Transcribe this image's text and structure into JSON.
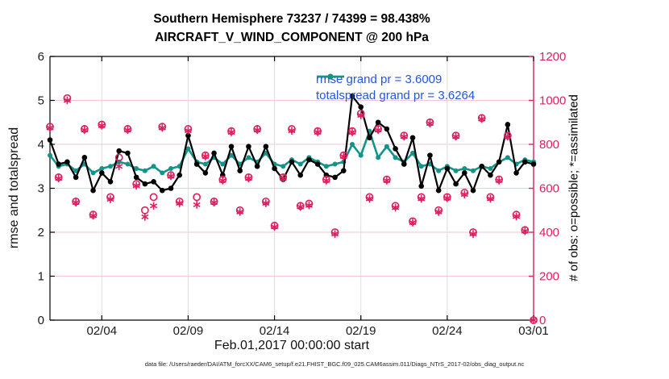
{
  "title": {
    "line1": "Southern Hemisphere 73237 / 74399 = 98.438%",
    "line2": "AIRCRAFT_V_WIND_COMPONENT @ 200 hPa"
  },
  "legend": {
    "items": [
      {
        "label": "rmse grand pr = 3.6009",
        "color": "#000000"
      },
      {
        "label": "totalspread grand pr = 3.6264",
        "color": "#12948a"
      }
    ],
    "text_color": "#2356dd"
  },
  "axes": {
    "left_label": "rmse and totalspread",
    "right_label": "# of obs: o=possible; *=assimilated",
    "x_label": "Feb.01,2017 00:00:00 start",
    "left_ticks": [
      0,
      1,
      2,
      3,
      4,
      5,
      6
    ],
    "right_ticks": [
      0,
      200,
      400,
      600,
      800,
      1000,
      1200
    ],
    "x_ticks": [
      {
        "day": 3,
        "label": "02/04"
      },
      {
        "day": 8,
        "label": "02/09"
      },
      {
        "day": 13,
        "label": "02/14"
      },
      {
        "day": 18,
        "label": "02/19"
      },
      {
        "day": 23,
        "label": "02/24"
      },
      {
        "day": 28,
        "label": "03/01"
      }
    ]
  },
  "footer": "data file: /Users/raeder/DAI/ATM_forcXX/CAM6_setup/f.e21.FHIST_BGC.f09_025.CAM6assim.011/Diags_NTrS_2017-02/obs_diag_output.nc",
  "colors": {
    "rmse": "#000000",
    "totalspread": "#12948a",
    "obs": "#dc205f",
    "grid_horizontal": "#f3c6d3",
    "grid_vertical": "#dcdcdc",
    "axis_black": "#000000",
    "axis_right": "#dc205f",
    "legend_text": "#2356dd",
    "tick_text": "#1a1a1a"
  },
  "chart_data": {
    "type": "line",
    "title": "Southern Hemisphere 73237 / 74399 = 98.438% | AIRCRAFT_V_WIND_COMPONENT @ 200 hPa",
    "xlabel": "Feb.01,2017 00:00:00 start",
    "ylabel_left": "rmse and totalspread",
    "ylabel_right": "# of obs: o=possible; *=assimilated",
    "x_days_start": 0,
    "x_days_step": 0.5,
    "x_range_days": [
      0,
      28
    ],
    "ylim_left": [
      0,
      6
    ],
    "ylim_right": [
      0,
      1200
    ],
    "grid": true,
    "legend_position": "top-right-inside",
    "series": [
      {
        "name": "rmse",
        "grand_pr": 3.6009,
        "axis": "left",
        "color": "#000000",
        "values": [
          4.1,
          3.55,
          3.6,
          3.25,
          3.7,
          2.95,
          3.35,
          3.15,
          3.85,
          3.8,
          3.25,
          3.1,
          3.15,
          2.95,
          3.0,
          3.3,
          4.2,
          3.55,
          3.35,
          3.8,
          3.3,
          3.95,
          3.4,
          3.95,
          3.5,
          3.95,
          3.45,
          3.2,
          3.6,
          3.3,
          3.65,
          3.55,
          3.3,
          3.25,
          3.4,
          5.1,
          4.85,
          4.15,
          4.5,
          4.35,
          3.9,
          3.55,
          4.15,
          3.05,
          3.75,
          2.95,
          3.45,
          3.1,
          3.35,
          2.95,
          3.5,
          3.3,
          3.6,
          4.45,
          3.35,
          3.6,
          3.55
        ]
      },
      {
        "name": "totalspread",
        "grand_pr": 3.6264,
        "axis": "left",
        "color": "#12948a",
        "values": [
          3.75,
          3.5,
          3.55,
          3.4,
          3.55,
          3.35,
          3.45,
          3.5,
          3.6,
          3.55,
          3.45,
          3.4,
          3.5,
          3.35,
          3.45,
          3.5,
          3.9,
          3.6,
          3.55,
          3.7,
          3.55,
          3.75,
          3.55,
          3.7,
          3.6,
          3.8,
          3.55,
          3.5,
          3.65,
          3.55,
          3.7,
          3.6,
          3.5,
          3.55,
          3.6,
          4.0,
          3.75,
          4.3,
          3.7,
          3.95,
          3.7,
          3.6,
          3.8,
          3.5,
          3.55,
          3.4,
          3.5,
          3.4,
          3.45,
          3.4,
          3.5,
          3.45,
          3.6,
          3.7,
          3.55,
          3.65,
          3.6
        ]
      }
    ],
    "obs_counts": {
      "axis": "right",
      "color": "#dc205f",
      "possible_marker": "o",
      "assimilated_marker": "*",
      "possible": [
        880,
        650,
        1010,
        540,
        870,
        480,
        890,
        560,
        740,
        870,
        620,
        500,
        560,
        880,
        660,
        540,
        870,
        560,
        750,
        540,
        640,
        860,
        500,
        650,
        870,
        540,
        430,
        650,
        870,
        520,
        530,
        860,
        640,
        400,
        750,
        860,
        940,
        560,
        870,
        640,
        520,
        840,
        450,
        560,
        900,
        500,
        560,
        840,
        580,
        400,
        920,
        560,
        640,
        840,
        480,
        410,
        0
      ],
      "assimilated": [
        875,
        645,
        1000,
        535,
        865,
        475,
        885,
        550,
        700,
        865,
        612,
        470,
        520,
        875,
        655,
        532,
        862,
        525,
        745,
        535,
        635,
        855,
        492,
        645,
        865,
        532,
        424,
        645,
        862,
        515,
        522,
        855,
        635,
        392,
        745,
        855,
        932,
        552,
        865,
        635,
        512,
        835,
        444,
        552,
        895,
        492,
        555,
        835,
        572,
        392,
        915,
        552,
        635,
        835,
        472,
        405,
        0
      ]
    }
  }
}
